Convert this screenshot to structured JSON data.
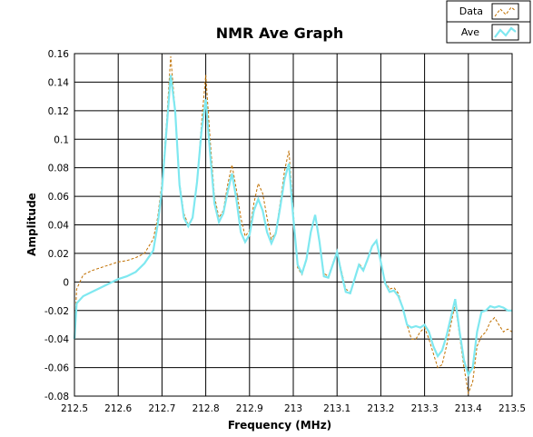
{
  "chart_data": {
    "type": "line",
    "title": "NMR Ave Graph",
    "xlabel": "Frequency (MHz)",
    "ylabel": "Amplitude",
    "xlim": [
      212.5,
      213.5
    ],
    "ylim": [
      -0.08,
      0.16
    ],
    "xticks": [
      "212.5",
      "212.6",
      "212.7",
      "212.8",
      "212.9",
      "213",
      "213.1",
      "213.2",
      "213.3",
      "213.4",
      "213.5"
    ],
    "yticks": [
      "-0.08",
      "-0.06",
      "-0.04",
      "-0.02",
      "0",
      "0.02",
      "0.04",
      "0.06",
      "0.08",
      "0.1",
      "0.12",
      "0.14",
      "0.16"
    ],
    "grid": true,
    "legend_position": "top-right",
    "series": [
      {
        "name": "Data",
        "color": "#c07000",
        "style": "dashed",
        "points": [
          [
            212.5,
            -0.038
          ],
          [
            212.505,
            -0.005
          ],
          [
            212.52,
            0.005
          ],
          [
            212.54,
            0.008
          ],
          [
            212.56,
            0.01
          ],
          [
            212.58,
            0.012
          ],
          [
            212.6,
            0.014
          ],
          [
            212.62,
            0.015
          ],
          [
            212.64,
            0.017
          ],
          [
            212.66,
            0.02
          ],
          [
            212.68,
            0.03
          ],
          [
            212.69,
            0.045
          ],
          [
            212.7,
            0.07
          ],
          [
            212.71,
            0.11
          ],
          [
            212.72,
            0.158
          ],
          [
            212.73,
            0.12
          ],
          [
            212.74,
            0.07
          ],
          [
            212.75,
            0.048
          ],
          [
            212.76,
            0.04
          ],
          [
            212.77,
            0.045
          ],
          [
            212.78,
            0.07
          ],
          [
            212.79,
            0.11
          ],
          [
            212.8,
            0.145
          ],
          [
            212.81,
            0.1
          ],
          [
            212.82,
            0.06
          ],
          [
            212.83,
            0.045
          ],
          [
            212.84,
            0.05
          ],
          [
            212.85,
            0.068
          ],
          [
            212.86,
            0.082
          ],
          [
            212.87,
            0.065
          ],
          [
            212.88,
            0.045
          ],
          [
            212.89,
            0.032
          ],
          [
            212.9,
            0.036
          ],
          [
            212.91,
            0.055
          ],
          [
            212.92,
            0.069
          ],
          [
            212.93,
            0.062
          ],
          [
            212.94,
            0.045
          ],
          [
            212.95,
            0.03
          ],
          [
            212.96,
            0.035
          ],
          [
            212.97,
            0.055
          ],
          [
            212.98,
            0.078
          ],
          [
            212.99,
            0.092
          ],
          [
            213.0,
            0.05
          ],
          [
            213.01,
            0.01
          ],
          [
            213.02,
            0.005
          ],
          [
            213.03,
            0.015
          ],
          [
            213.04,
            0.035
          ],
          [
            213.05,
            0.047
          ],
          [
            213.06,
            0.028
          ],
          [
            213.07,
            0.006
          ],
          [
            213.08,
            0.004
          ],
          [
            213.09,
            0.013
          ],
          [
            213.1,
            0.021
          ],
          [
            213.11,
            0.008
          ],
          [
            213.12,
            -0.005
          ],
          [
            213.13,
            -0.007
          ],
          [
            213.14,
            0.002
          ],
          [
            213.15,
            0.013
          ],
          [
            213.16,
            0.009
          ],
          [
            213.17,
            0.015
          ],
          [
            213.18,
            0.025
          ],
          [
            213.19,
            0.028
          ],
          [
            213.2,
            0.015
          ],
          [
            213.21,
            0.0
          ],
          [
            213.22,
            -0.005
          ],
          [
            213.23,
            -0.004
          ],
          [
            213.24,
            -0.008
          ],
          [
            213.25,
            -0.018
          ],
          [
            213.26,
            -0.03
          ],
          [
            213.27,
            -0.04
          ],
          [
            213.28,
            -0.04
          ],
          [
            213.29,
            -0.035
          ],
          [
            213.3,
            -0.032
          ],
          [
            213.31,
            -0.04
          ],
          [
            213.32,
            -0.05
          ],
          [
            213.33,
            -0.06
          ],
          [
            213.34,
            -0.058
          ],
          [
            213.35,
            -0.045
          ],
          [
            213.36,
            -0.03
          ],
          [
            213.37,
            -0.015
          ],
          [
            213.38,
            -0.038
          ],
          [
            213.39,
            -0.06
          ],
          [
            213.4,
            -0.078
          ],
          [
            213.41,
            -0.07
          ],
          [
            213.42,
            -0.045
          ],
          [
            213.43,
            -0.038
          ],
          [
            213.44,
            -0.035
          ],
          [
            213.45,
            -0.028
          ],
          [
            213.46,
            -0.025
          ],
          [
            213.47,
            -0.03
          ],
          [
            213.48,
            -0.035
          ],
          [
            213.49,
            -0.033
          ],
          [
            213.5,
            -0.035
          ]
        ]
      },
      {
        "name": "Ave",
        "color": "#7fe8f0",
        "style": "solid",
        "points": [
          [
            212.5,
            -0.04
          ],
          [
            212.505,
            -0.015
          ],
          [
            212.52,
            -0.01
          ],
          [
            212.54,
            -0.007
          ],
          [
            212.56,
            -0.004
          ],
          [
            212.58,
            -0.001
          ],
          [
            212.6,
            0.002
          ],
          [
            212.62,
            0.004
          ],
          [
            212.64,
            0.007
          ],
          [
            212.66,
            0.013
          ],
          [
            212.68,
            0.022
          ],
          [
            212.69,
            0.04
          ],
          [
            212.7,
            0.065
          ],
          [
            212.71,
            0.105
          ],
          [
            212.72,
            0.145
          ],
          [
            212.73,
            0.12
          ],
          [
            212.74,
            0.068
          ],
          [
            212.75,
            0.045
          ],
          [
            212.76,
            0.039
          ],
          [
            212.77,
            0.045
          ],
          [
            212.78,
            0.07
          ],
          [
            212.79,
            0.105
          ],
          [
            212.8,
            0.128
          ],
          [
            212.81,
            0.09
          ],
          [
            212.82,
            0.055
          ],
          [
            212.83,
            0.042
          ],
          [
            212.84,
            0.048
          ],
          [
            212.85,
            0.063
          ],
          [
            212.86,
            0.076
          ],
          [
            212.87,
            0.058
          ],
          [
            212.88,
            0.035
          ],
          [
            212.89,
            0.028
          ],
          [
            212.9,
            0.033
          ],
          [
            212.91,
            0.05
          ],
          [
            212.92,
            0.058
          ],
          [
            212.93,
            0.05
          ],
          [
            212.94,
            0.035
          ],
          [
            212.95,
            0.027
          ],
          [
            212.96,
            0.034
          ],
          [
            212.97,
            0.052
          ],
          [
            212.98,
            0.072
          ],
          [
            212.99,
            0.083
          ],
          [
            213.0,
            0.045
          ],
          [
            213.01,
            0.012
          ],
          [
            213.02,
            0.006
          ],
          [
            213.03,
            0.016
          ],
          [
            213.04,
            0.035
          ],
          [
            213.05,
            0.047
          ],
          [
            213.06,
            0.028
          ],
          [
            213.07,
            0.004
          ],
          [
            213.08,
            0.003
          ],
          [
            213.09,
            0.012
          ],
          [
            213.1,
            0.021
          ],
          [
            213.11,
            0.006
          ],
          [
            213.12,
            -0.007
          ],
          [
            213.13,
            -0.008
          ],
          [
            213.14,
            0.002
          ],
          [
            213.15,
            0.012
          ],
          [
            213.16,
            0.008
          ],
          [
            213.17,
            0.016
          ],
          [
            213.18,
            0.025
          ],
          [
            213.19,
            0.029
          ],
          [
            213.2,
            0.014
          ],
          [
            213.21,
            -0.001
          ],
          [
            213.22,
            -0.007
          ],
          [
            213.23,
            -0.006
          ],
          [
            213.24,
            -0.01
          ],
          [
            213.25,
            -0.018
          ],
          [
            213.26,
            -0.03
          ],
          [
            213.27,
            -0.032
          ],
          [
            213.28,
            -0.031
          ],
          [
            213.29,
            -0.032
          ],
          [
            213.3,
            -0.03
          ],
          [
            213.31,
            -0.035
          ],
          [
            213.32,
            -0.045
          ],
          [
            213.33,
            -0.052
          ],
          [
            213.34,
            -0.048
          ],
          [
            213.35,
            -0.038
          ],
          [
            213.36,
            -0.025
          ],
          [
            213.37,
            -0.012
          ],
          [
            213.38,
            -0.035
          ],
          [
            213.39,
            -0.055
          ],
          [
            213.4,
            -0.065
          ],
          [
            213.41,
            -0.06
          ],
          [
            213.42,
            -0.035
          ],
          [
            213.43,
            -0.021
          ],
          [
            213.44,
            -0.02
          ],
          [
            213.45,
            -0.017
          ],
          [
            213.46,
            -0.018
          ],
          [
            213.47,
            -0.017
          ],
          [
            213.48,
            -0.018
          ],
          [
            213.49,
            -0.02
          ],
          [
            213.5,
            -0.02
          ]
        ]
      }
    ]
  }
}
